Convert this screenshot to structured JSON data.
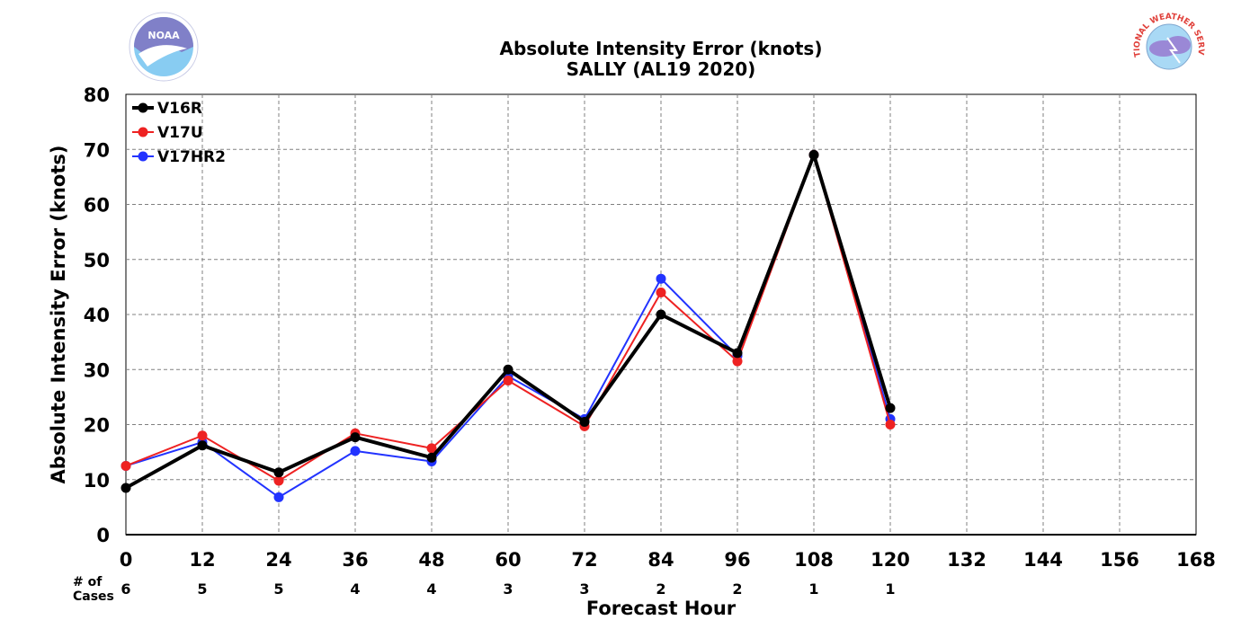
{
  "logos": {
    "noaa": {
      "text": "NOAA",
      "icon": "noaa-logo-icon",
      "color": "#1f6fb5"
    },
    "nws": {
      "text": "NATIONAL WEATHER SERVICE",
      "icon": "nws-logo-icon",
      "color": "#e0403a"
    }
  },
  "chart_data": {
    "type": "line",
    "title": "Absolute Intensity Error (knots)",
    "subtitle": "SALLY (AL19 2020)",
    "xlabel": "Forecast Hour",
    "ylabel": "Absolute Intensity Error (knots)",
    "xlim": [
      0,
      168
    ],
    "ylim": [
      0,
      80
    ],
    "xticks": [
      0,
      12,
      24,
      36,
      48,
      60,
      72,
      84,
      96,
      108,
      120,
      132,
      144,
      156,
      168
    ],
    "yticks": [
      0,
      10,
      20,
      30,
      40,
      50,
      60,
      70,
      80
    ],
    "grid": true,
    "legend_position": "top-left",
    "cases_label": "# of\nCases",
    "cases": [
      {
        "x": 0,
        "n": "6"
      },
      {
        "x": 12,
        "n": "5"
      },
      {
        "x": 24,
        "n": "5"
      },
      {
        "x": 36,
        "n": "4"
      },
      {
        "x": 48,
        "n": "4"
      },
      {
        "x": 60,
        "n": "3"
      },
      {
        "x": 72,
        "n": "3"
      },
      {
        "x": 84,
        "n": "2"
      },
      {
        "x": 96,
        "n": "2"
      },
      {
        "x": 108,
        "n": "1"
      },
      {
        "x": 120,
        "n": "1"
      }
    ],
    "series": [
      {
        "name": "V17HR2",
        "color": "#2233ff",
        "width": 2,
        "x": [
          0,
          12,
          24,
          36,
          48,
          60,
          72,
          84,
          96,
          108,
          120
        ],
        "y": [
          12.5,
          16.8,
          6.8,
          15.2,
          13.3,
          28.8,
          21.0,
          46.5,
          32.5,
          69.0,
          21.0
        ]
      },
      {
        "name": "V17U",
        "color": "#ee2222",
        "width": 2,
        "x": [
          0,
          12,
          24,
          36,
          48,
          60,
          72,
          84,
          96,
          108,
          120
        ],
        "y": [
          12.5,
          18.0,
          9.8,
          18.4,
          15.7,
          28.0,
          19.7,
          44.0,
          31.5,
          69.0,
          20.0
        ]
      },
      {
        "name": "V16R",
        "color": "#000000",
        "width": 4,
        "x": [
          0,
          12,
          24,
          36,
          48,
          60,
          72,
          84,
          96,
          108,
          120
        ],
        "y": [
          8.5,
          16.2,
          11.3,
          17.7,
          14.0,
          30.0,
          20.5,
          40.0,
          33.0,
          69.0,
          23.0
        ]
      }
    ],
    "legend_order": [
      "V16R",
      "V17U",
      "V17HR2"
    ]
  }
}
